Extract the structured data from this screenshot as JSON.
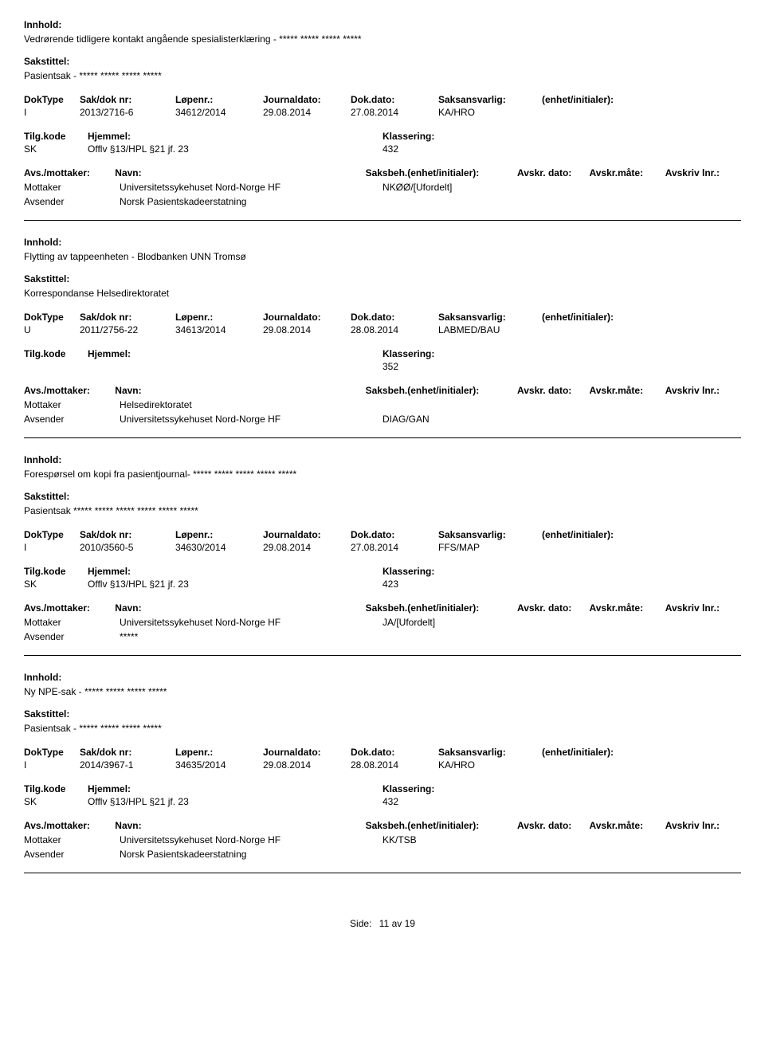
{
  "labels": {
    "innhold": "Innhold:",
    "sakstittel": "Sakstittel:",
    "doktype": "DokType",
    "sakdok": "Sak/dok nr:",
    "lopenr": "Løpenr.:",
    "journaldato": "Journaldato:",
    "dokdato": "Dok.dato:",
    "saksansvarlig": "Saksansvarlig:",
    "enhet": "(enhet/initialer):",
    "tilgkode": "Tilg.kode",
    "hjemmel": "Hjemmel:",
    "klassering": "Klassering:",
    "avsmottaker": "Avs./mottaker:",
    "navn": "Navn:",
    "saksbeh": "Saksbeh.(enhet/initialer):",
    "avskr_dato": "Avskr. dato:",
    "avskr_mate": "Avskr.måte:",
    "avskriv_lnr": "Avskriv lnr.:",
    "mottaker": "Mottaker",
    "avsender": "Avsender",
    "side": "Side:",
    "av": "av"
  },
  "footer": {
    "page": "11",
    "total": "19"
  },
  "entries": [
    {
      "innhold": "Vedrørende tidligere kontakt angående spesialisterklæring - ***** ***** ***** *****",
      "sakstittel": "Pasientsak - ***** ***** ***** *****",
      "doktype": "I",
      "sakdok": "2013/2716-6",
      "lopenr": "34612/2014",
      "journaldato": "29.08.2014",
      "dokdato": "27.08.2014",
      "saksansvarlig": "KA/HRO",
      "tilg": "SK",
      "hjemmel": "Offlv §13/HPL §21 jf. 23",
      "klassering": "432",
      "parties": [
        {
          "role": "Mottaker",
          "name": "Universitetssykehuset Nord-Norge HF",
          "unit": "NKØØ/[Ufordelt]"
        },
        {
          "role": "Avsender",
          "name": "Norsk Pasientskadeerstatning",
          "unit": ""
        }
      ]
    },
    {
      "innhold": "Flytting av tappeenheten - Blodbanken UNN Tromsø",
      "sakstittel": "Korrespondanse Helsedirektoratet",
      "doktype": "U",
      "sakdok": "2011/2756-22",
      "lopenr": "34613/2014",
      "journaldato": "29.08.2014",
      "dokdato": "28.08.2014",
      "saksansvarlig": "LABMED/BAU",
      "tilg": "",
      "hjemmel": "",
      "klassering": "352",
      "parties": [
        {
          "role": "Mottaker",
          "name": "Helsedirektoratet",
          "unit": ""
        },
        {
          "role": "Avsender",
          "name": "Universitetssykehuset Nord-Norge HF",
          "unit": "DIAG/GAN"
        }
      ]
    },
    {
      "innhold": "Forespørsel om kopi fra pasientjournal- ***** ***** ***** ***** *****",
      "sakstittel": "Pasientsak ***** ***** ***** ***** ***** *****",
      "doktype": "I",
      "sakdok": "2010/3560-5",
      "lopenr": "34630/2014",
      "journaldato": "29.08.2014",
      "dokdato": "27.08.2014",
      "saksansvarlig": "FFS/MAP",
      "tilg": "SK",
      "hjemmel": "Offlv §13/HPL §21 jf. 23",
      "klassering": "423",
      "parties": [
        {
          "role": "Mottaker",
          "name": "Universitetssykehuset Nord-Norge HF",
          "unit": "JA/[Ufordelt]"
        },
        {
          "role": "Avsender",
          "name": "*****",
          "unit": ""
        }
      ]
    },
    {
      "innhold": "Ny NPE-sak - ***** ***** ***** *****",
      "sakstittel": "Pasientsak - ***** ***** ***** *****",
      "doktype": "I",
      "sakdok": "2014/3967-1",
      "lopenr": "34635/2014",
      "journaldato": "29.08.2014",
      "dokdato": "28.08.2014",
      "saksansvarlig": "KA/HRO",
      "tilg": "SK",
      "hjemmel": "Offlv §13/HPL §21 jf. 23",
      "klassering": "432",
      "parties": [
        {
          "role": "Mottaker",
          "name": "Universitetssykehuset Nord-Norge HF",
          "unit": "KK/TSB"
        },
        {
          "role": "Avsender",
          "name": "Norsk Pasientskadeerstatning",
          "unit": ""
        }
      ]
    }
  ]
}
